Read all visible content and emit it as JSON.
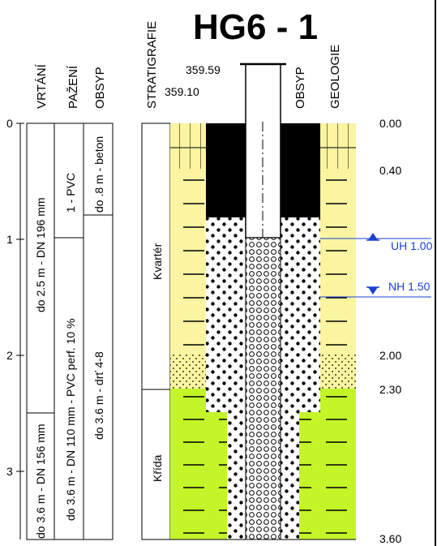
{
  "title": "HG6 - 1",
  "headers": {
    "vrtani": "VRTÁNÍ",
    "pazeni": "PAŽENÍ",
    "obsyp_left": "OBSYP",
    "stratigrafie": "STRATIGRAFIE",
    "obsyp_right": "OBSYP",
    "geologie": "GEOLOGIE"
  },
  "elevations": {
    "top": "359.59",
    "ground": "359.10"
  },
  "scale_ticks": [
    "0",
    "1",
    "2",
    "3"
  ],
  "depth_labels": [
    "0.00",
    "0.40",
    "2.00",
    "2.30",
    "3.60"
  ],
  "drilling": [
    "do 2.5 m - DN 196 mm",
    "do 3.6 m - DN 156 mm"
  ],
  "casing": [
    "1 - PVC",
    "do 3.6 m - DN 110 mm - PVC perf. 10 %"
  ],
  "backfill": [
    "do .8 m - beton",
    "do 3.6 m - drť 4-8"
  ],
  "stratigraphy": [
    "Kvartér",
    "Křída"
  ],
  "water_levels": [
    {
      "label": "UH 1.00",
      "depth": 1.0
    },
    {
      "label": "NH 1.50",
      "depth": 1.5
    }
  ],
  "colors": {
    "quaternary": "#fbf4a0",
    "cretaceous": "#c3f529",
    "water": "#1a3fd6"
  }
}
